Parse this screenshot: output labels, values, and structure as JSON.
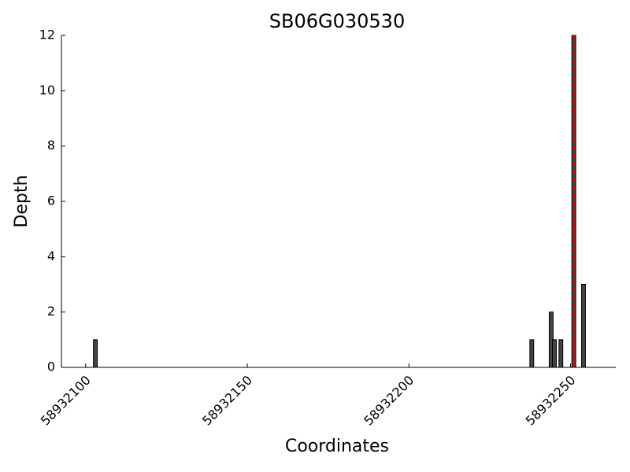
{
  "chart_data": {
    "type": "bar",
    "title": "SB06G030530",
    "xlabel": "Coordinates",
    "ylabel": "Depth",
    "x": [
      58932103,
      58932238,
      58932244,
      58932245,
      58932247,
      58932251,
      58932254
    ],
    "values": [
      1,
      1,
      2,
      1,
      1,
      12,
      3
    ],
    "color": "#444444",
    "vline": {
      "x": 58932251,
      "color": "#dd0000"
    },
    "xlim": [
      58932092.5,
      58932264
    ],
    "xticks": [
      58932100,
      58932150,
      58932200,
      58932250
    ],
    "ylim": [
      0,
      12
    ],
    "yticks": [
      0,
      2,
      4,
      6,
      8,
      10,
      12
    ],
    "grid": false
  }
}
